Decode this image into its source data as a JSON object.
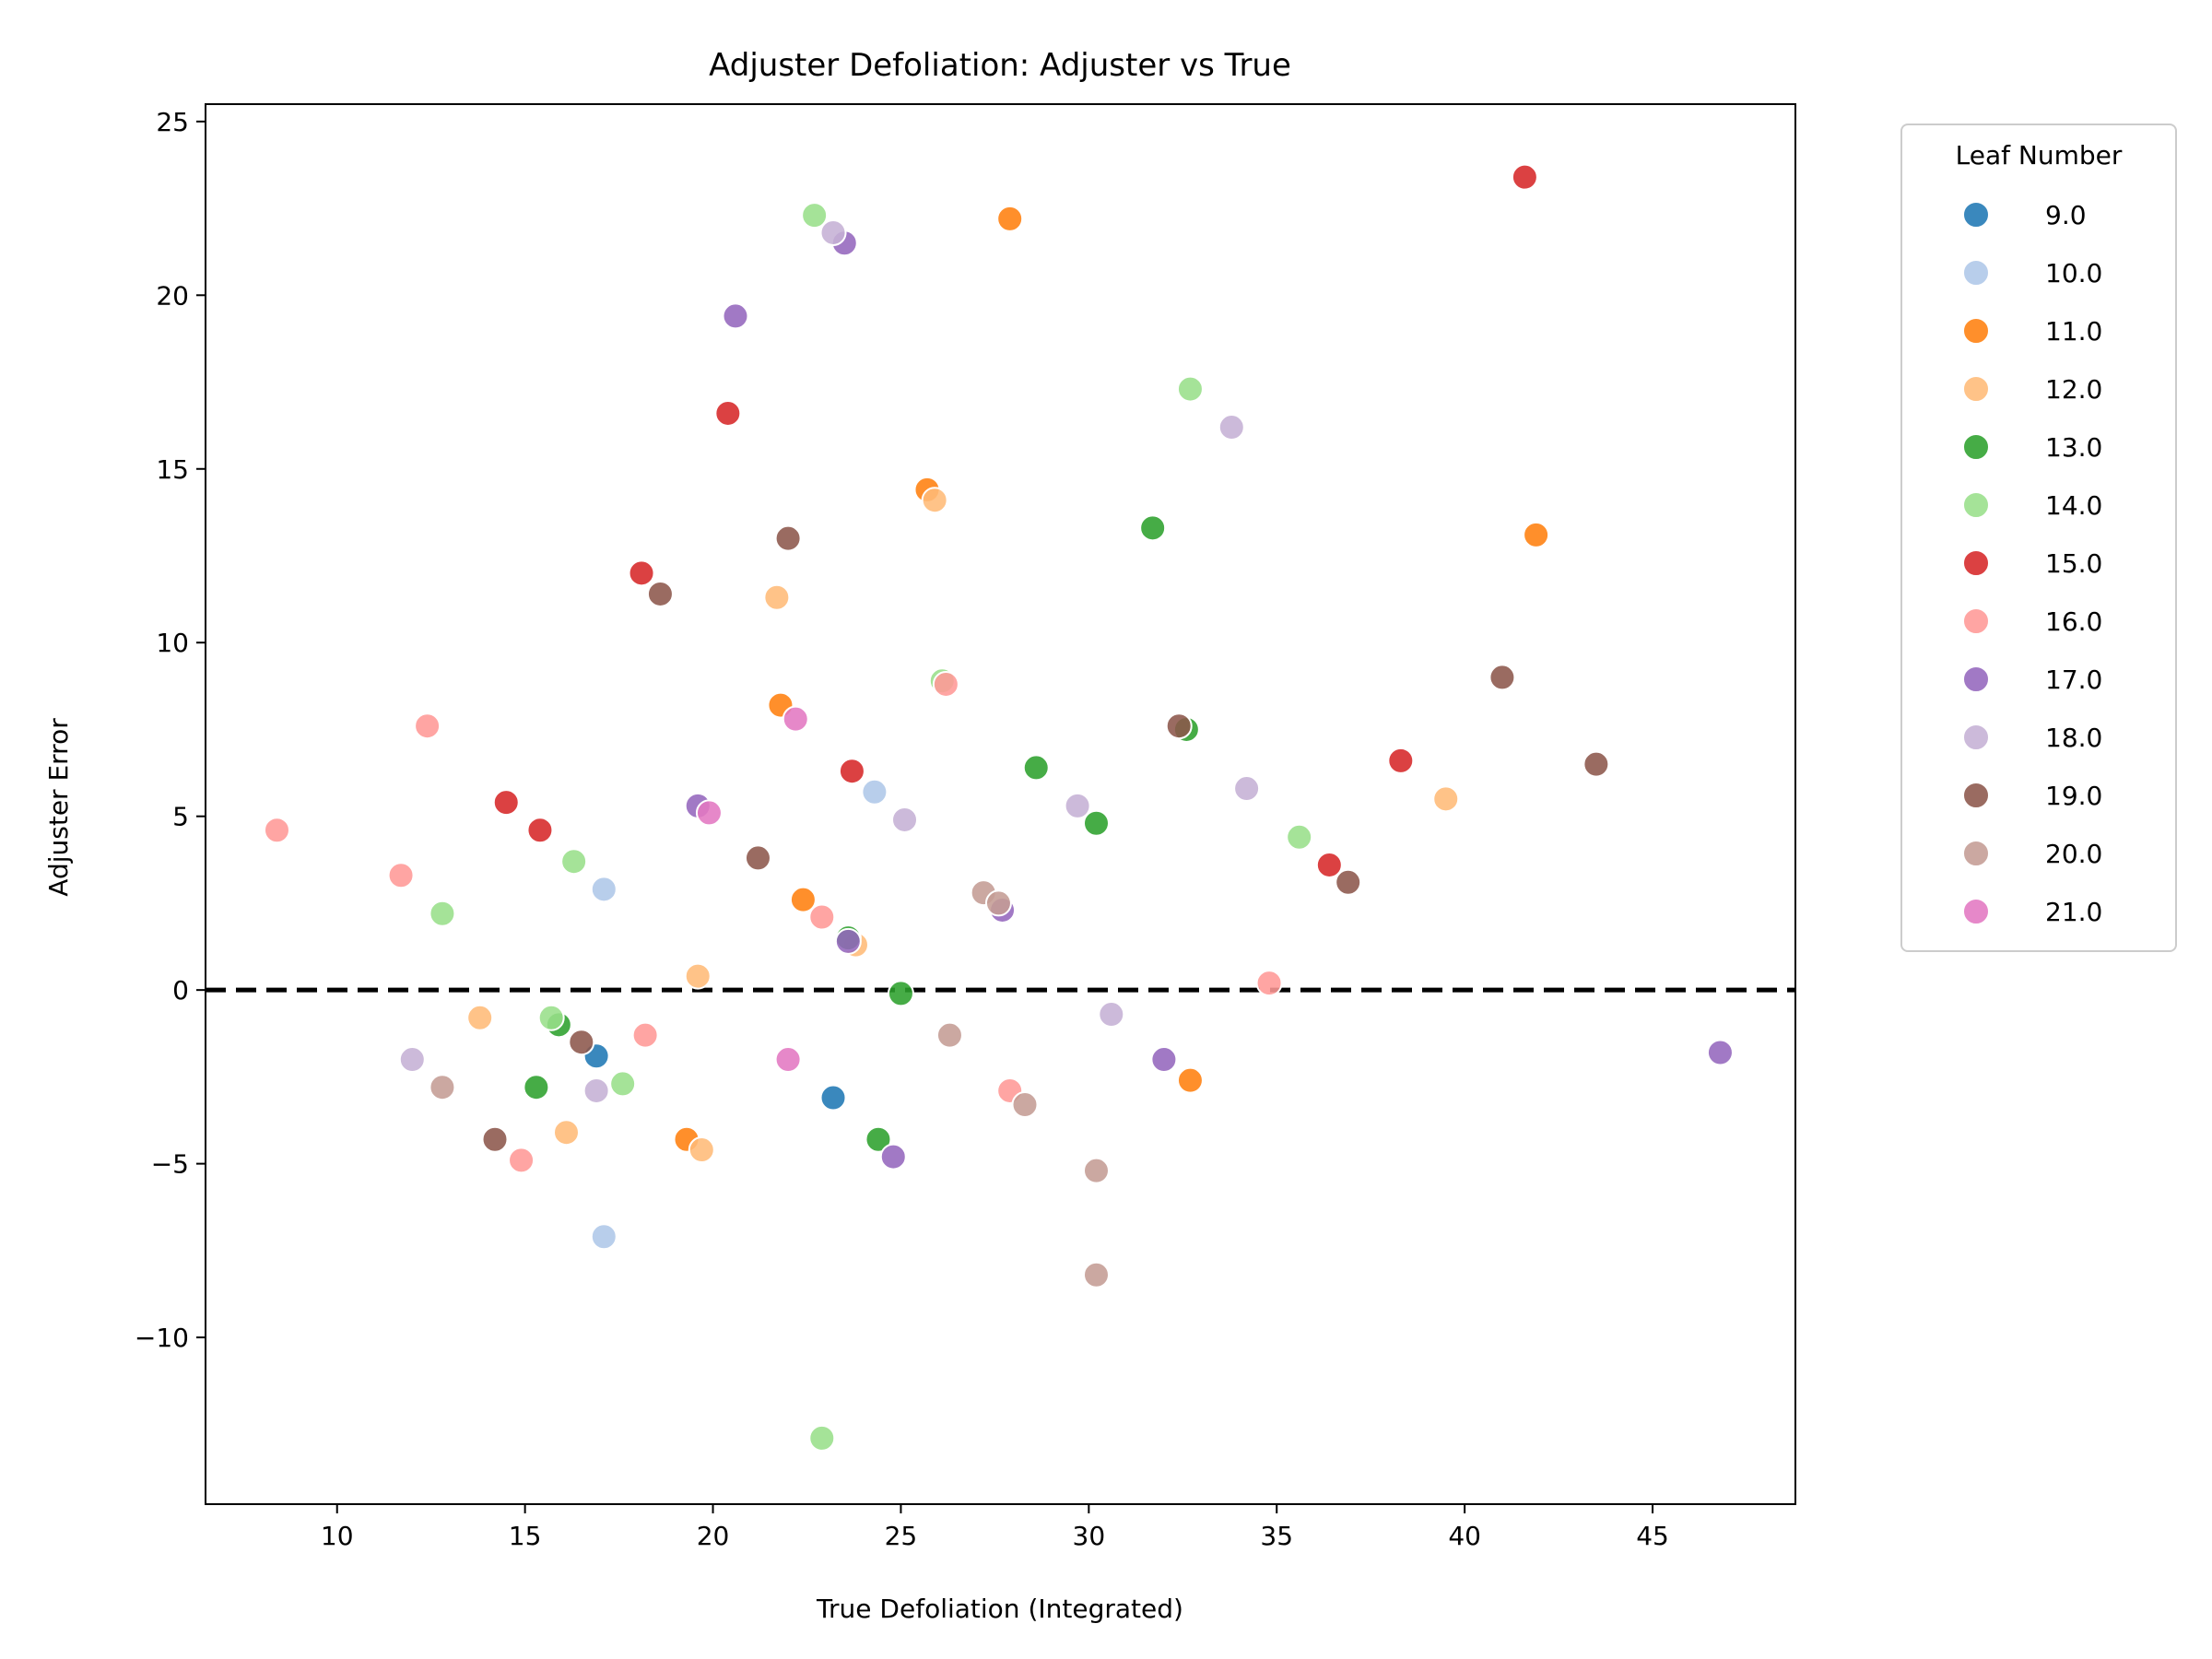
{
  "chart_data": {
    "type": "scatter",
    "title": "Adjuster Defoliation: Adjuster vs True",
    "xlabel": "True Defoliation (Integrated)",
    "ylabel": "Adjuster Error",
    "xlim": [
      6.5,
      48.8
    ],
    "ylim": [
      -14.8,
      25.5
    ],
    "xticks": [
      10,
      15,
      20,
      25,
      30,
      35,
      40,
      45
    ],
    "yticks": [
      -10,
      -5,
      0,
      5,
      10,
      15,
      20,
      25
    ],
    "xtick_labels": [
      "10",
      "15",
      "20",
      "25",
      "30",
      "35",
      "40",
      "45"
    ],
    "ytick_labels": [
      "−10",
      "−5",
      "0",
      "5",
      "10",
      "15",
      "20",
      "25"
    ],
    "reference_line": {
      "y": 0,
      "style": "dashed",
      "color": "#000000"
    },
    "grid": false,
    "legend": {
      "title": "Leaf Number",
      "placement": "outside-right-top",
      "entries": [
        {
          "name": "9.0",
          "color": "#1f77b4"
        },
        {
          "name": "10.0",
          "color": "#aec7e8"
        },
        {
          "name": "11.0",
          "color": "#ff7f0e"
        },
        {
          "name": "12.0",
          "color": "#ffbb78"
        },
        {
          "name": "13.0",
          "color": "#2ca02c"
        },
        {
          "name": "14.0",
          "color": "#98df8a"
        },
        {
          "name": "15.0",
          "color": "#d62728"
        },
        {
          "name": "16.0",
          "color": "#ff9896"
        },
        {
          "name": "17.0",
          "color": "#9467bd"
        },
        {
          "name": "18.0",
          "color": "#c5b0d5"
        },
        {
          "name": "19.0",
          "color": "#8c564b"
        },
        {
          "name": "20.0",
          "color": "#c49c94"
        },
        {
          "name": "21.0",
          "color": "#e377c2"
        }
      ]
    },
    "series": [
      {
        "name": "9.0",
        "color": "#1f77b4",
        "points": [
          [
            16.9,
            -1.9
          ],
          [
            23.2,
            -3.1
          ]
        ]
      },
      {
        "name": "10.0",
        "color": "#aec7e8",
        "points": [
          [
            17.1,
            2.9
          ],
          [
            17.1,
            -7.1
          ],
          [
            24.3,
            5.7
          ]
        ]
      },
      {
        "name": "11.0",
        "color": "#ff7f0e",
        "points": [
          [
            27.9,
            22.2
          ],
          [
            25.7,
            14.4
          ],
          [
            41.9,
            13.1
          ],
          [
            21.8,
            8.2
          ],
          [
            22.4,
            2.6
          ],
          [
            19.3,
            -4.3
          ],
          [
            32.7,
            -2.6
          ]
        ]
      },
      {
        "name": "12.0",
        "color": "#ffbb78",
        "points": [
          [
            25.9,
            14.1
          ],
          [
            21.7,
            11.3
          ],
          [
            39.5,
            5.5
          ],
          [
            19.6,
            0.4
          ],
          [
            23.8,
            1.3
          ],
          [
            13.8,
            -0.8
          ],
          [
            16.1,
            -4.1
          ],
          [
            19.7,
            -4.6
          ]
        ]
      },
      {
        "name": "13.0",
        "color": "#2ca02c",
        "points": [
          [
            31.7,
            13.3
          ],
          [
            28.6,
            6.4
          ],
          [
            30.2,
            4.8
          ],
          [
            32.6,
            7.5
          ],
          [
            23.6,
            1.5
          ],
          [
            25.0,
            -0.1
          ],
          [
            15.9,
            -1.0
          ],
          [
            15.3,
            -2.8
          ],
          [
            24.4,
            -4.3
          ]
        ]
      },
      {
        "name": "14.0",
        "color": "#98df8a",
        "points": [
          [
            22.7,
            22.3
          ],
          [
            32.7,
            17.3
          ],
          [
            26.1,
            8.9
          ],
          [
            35.6,
            4.4
          ],
          [
            16.3,
            3.7
          ],
          [
            12.8,
            2.2
          ],
          [
            15.7,
            -0.8
          ],
          [
            17.6,
            -2.7
          ],
          [
            22.9,
            -12.9
          ]
        ]
      },
      {
        "name": "15.0",
        "color": "#d62728",
        "points": [
          [
            41.6,
            23.4
          ],
          [
            20.4,
            16.6
          ],
          [
            18.1,
            12.0
          ],
          [
            23.7,
            6.3
          ],
          [
            38.3,
            6.6
          ],
          [
            14.5,
            5.4
          ],
          [
            15.4,
            4.6
          ],
          [
            36.4,
            3.6
          ]
        ]
      },
      {
        "name": "16.0",
        "color": "#ff9896",
        "points": [
          [
            26.2,
            8.8
          ],
          [
            12.4,
            7.6
          ],
          [
            8.4,
            4.6
          ],
          [
            11.7,
            3.3
          ],
          [
            22.9,
            2.1
          ],
          [
            34.8,
            0.2
          ],
          [
            18.2,
            -1.3
          ],
          [
            27.9,
            -2.9
          ],
          [
            14.9,
            -4.9
          ]
        ]
      },
      {
        "name": "17.0",
        "color": "#9467bd",
        "points": [
          [
            23.5,
            21.5
          ],
          [
            20.6,
            19.4
          ],
          [
            19.6,
            5.3
          ],
          [
            27.7,
            2.3
          ],
          [
            23.6,
            1.4
          ],
          [
            32.0,
            -2.0
          ],
          [
            24.8,
            -4.8
          ],
          [
            46.8,
            -1.8
          ]
        ]
      },
      {
        "name": "18.0",
        "color": "#c5b0d5",
        "points": [
          [
            23.2,
            21.8
          ],
          [
            33.8,
            16.2
          ],
          [
            34.2,
            5.8
          ],
          [
            29.7,
            5.3
          ],
          [
            25.1,
            4.9
          ],
          [
            30.6,
            -0.7
          ],
          [
            12.0,
            -2.0
          ],
          [
            16.9,
            -2.9
          ]
        ]
      },
      {
        "name": "19.0",
        "color": "#8c564b",
        "points": [
          [
            22.0,
            13.0
          ],
          [
            18.6,
            11.4
          ],
          [
            41.0,
            9.0
          ],
          [
            32.4,
            7.6
          ],
          [
            43.5,
            6.5
          ],
          [
            21.2,
            3.8
          ],
          [
            36.9,
            3.1
          ],
          [
            16.5,
            -1.5
          ],
          [
            14.2,
            -4.3
          ]
        ]
      },
      {
        "name": "20.0",
        "color": "#c49c94",
        "points": [
          [
            27.2,
            2.8
          ],
          [
            27.6,
            2.5
          ],
          [
            26.3,
            -1.3
          ],
          [
            12.8,
            -2.8
          ],
          [
            28.3,
            -3.3
          ],
          [
            30.2,
            -5.2
          ],
          [
            30.2,
            -8.2
          ]
        ]
      },
      {
        "name": "21.0",
        "color": "#e377c2",
        "points": [
          [
            22.2,
            7.8
          ],
          [
            19.9,
            5.1
          ],
          [
            22.0,
            -2.0
          ]
        ]
      }
    ]
  }
}
